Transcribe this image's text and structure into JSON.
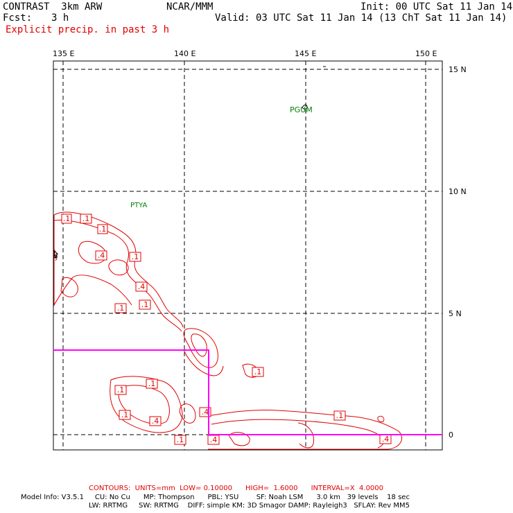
{
  "header": {
    "model_name": "CONTRAST  3km ARW",
    "org": "NCAR/MMM",
    "init": "Init: 00 UTC Sat 11 Jan 14",
    "fcst_label": "Fcst:",
    "fcst_value": "3 h",
    "valid": "Valid: 03 UTC Sat 11 Jan 14 (13 ChT Sat 11 Jan 14)",
    "field_title": "Explicit precip. in past 3 h"
  },
  "axes": {
    "lon_labels": [
      "135 E",
      "140 E",
      "145 E",
      "150 E"
    ],
    "lat_labels": [
      "15 N",
      "10 N",
      "5 N",
      "0"
    ]
  },
  "places": [
    "PGUM",
    "PTYA"
  ],
  "contour_labels": [
    ".1",
    ".1",
    ".1",
    ".4",
    ".1",
    ".4",
    ".1",
    ".1",
    ".1",
    ".1",
    ".1",
    ".1",
    ".4",
    ".4",
    ".1",
    ".4",
    ".1",
    ".4"
  ],
  "footer": {
    "contours": "CONTOURS:  UNITS=mm  LOW= 0.10000      HIGH=  1.6000      INTERVAL=X  4.0000",
    "model_info_1": "Model Info: V3.5.1     CU: No Cu      MP: Thompson      PBL: YSU        SF: Noah LSM      3.0 km   39 levels    18 sec",
    "model_info_2": "LW: RRTMG     SW: RRTMG    DIFF: simple KM: 3D Smagor DAMP: Rayleigh3   SFLAY: Rev MM5"
  },
  "colors": {
    "precip": "#e00000",
    "box": "#ff00ff",
    "station": "#008000"
  }
}
